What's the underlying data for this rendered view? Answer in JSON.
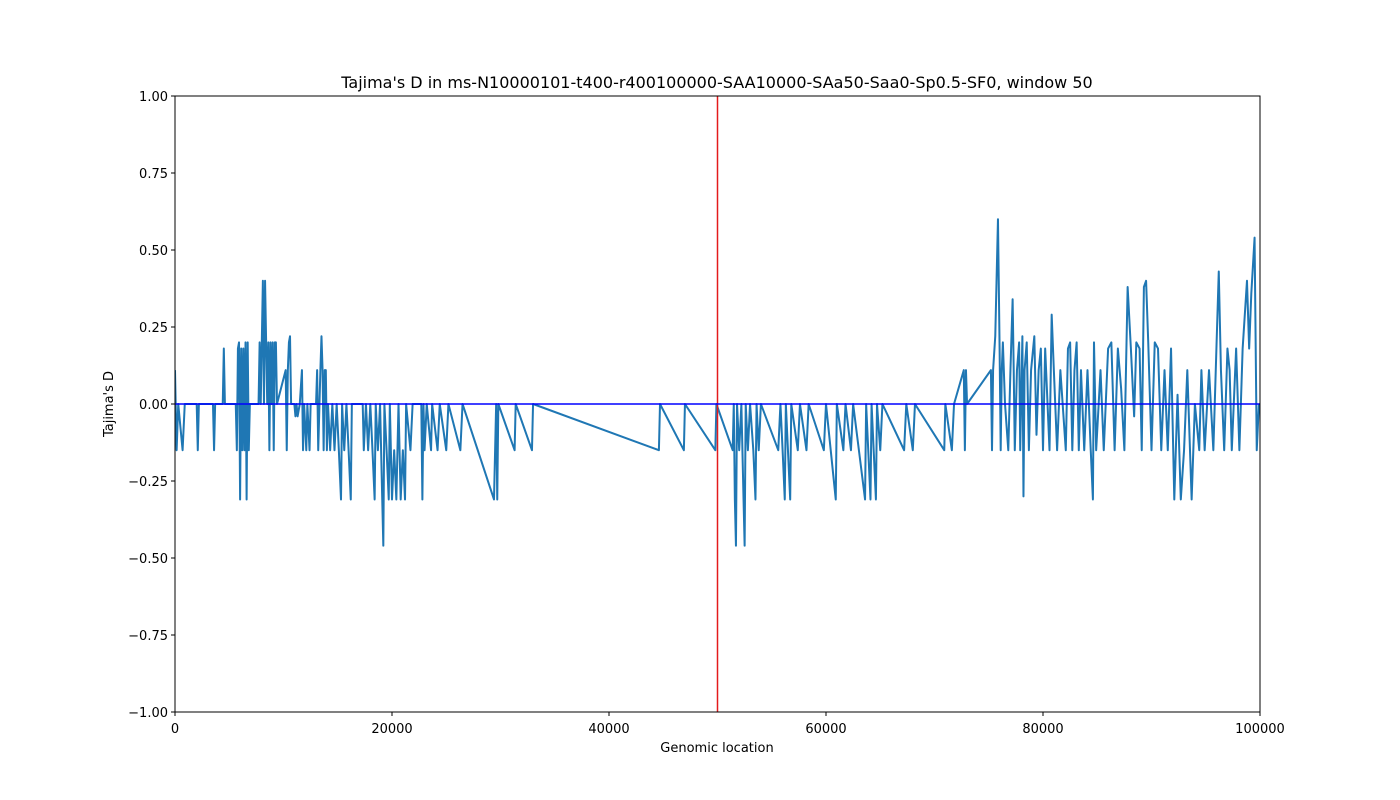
{
  "chart_data": {
    "type": "line",
    "title": "Tajima's D in ms-N10000101-t400-r400100000-SAA10000-SAa50-Saa0-Sp0.5-SF0, window 50",
    "xlabel": "Genomic location",
    "ylabel": "Tajima's D",
    "color": "#1f77b4",
    "xlim": [
      0,
      100000
    ],
    "ylim": [
      -1,
      1
    ],
    "xticks": [
      0,
      20000,
      40000,
      60000,
      80000,
      100000
    ],
    "yticks": [
      {
        "value": -1,
        "label": "−1.00"
      },
      {
        "value": -0.75,
        "label": "−0.75"
      },
      {
        "value": -0.5,
        "label": "−0.50"
      },
      {
        "value": -0.25,
        "label": "−0.25"
      },
      {
        "value": 0,
        "label": "0.00"
      },
      {
        "value": 0.25,
        "label": "0.25"
      },
      {
        "value": 0.5,
        "label": "0.50"
      },
      {
        "value": 0.75,
        "label": "0.75"
      },
      {
        "value": 1,
        "label": "1.00"
      }
    ],
    "grid": false,
    "reference_lines": [
      {
        "axis": "x",
        "value": 50000,
        "color": "#e41a1c"
      },
      {
        "axis": "y",
        "value": 0,
        "color": "#0000ff"
      }
    ],
    "x": [
      0,
      150,
      300,
      700,
      900,
      2000,
      2100,
      2200,
      3500,
      3600,
      3700,
      4400,
      4500,
      4600,
      5600,
      5700,
      5800,
      5900,
      6000,
      6100,
      6200,
      6300,
      6400,
      6500,
      6600,
      6700,
      6800,
      6900,
      7700,
      7800,
      7900,
      8000,
      8100,
      8200,
      8300,
      8400,
      8500,
      8600,
      8700,
      8800,
      8900,
      9000,
      9100,
      9200,
      9300,
      9400,
      10200,
      10300,
      10400,
      10500,
      10600,
      10700,
      11000,
      11100,
      11200,
      11300,
      11500,
      11700,
      11800,
      11900,
      12100,
      12200,
      12400,
      12500,
      13000,
      13100,
      13200,
      13400,
      13500,
      13600,
      13700,
      13800,
      13900,
      14000,
      14100,
      14300,
      14500,
      14700,
      14900,
      15100,
      15300,
      15400,
      15600,
      15800,
      16000,
      16200,
      16300,
      17300,
      17400,
      17600,
      17800,
      18000,
      18200,
      18400,
      18500,
      18700,
      18900,
      19100,
      19200,
      19300,
      19500,
      19700,
      19800,
      20000,
      20200,
      20400,
      20600,
      20800,
      21000,
      21200,
      21300,
      21700,
      21900,
      22700,
      22800,
      22900,
      23000,
      23200,
      23600,
      23700,
      24200,
      24400,
      25000,
      25200,
      26300,
      26500,
      29400,
      29600,
      29700,
      29800,
      31300,
      31400,
      32900,
      33000,
      44600,
      44700,
      46900,
      47000,
      49800,
      49900,
      51400,
      51500,
      51600,
      51700,
      51800,
      52000,
      52200,
      52400,
      52500,
      52600,
      52800,
      53000,
      53300,
      53500,
      53600,
      53800,
      54000,
      55600,
      55800,
      56000,
      56200,
      56300,
      56700,
      56800,
      57400,
      57600,
      58200,
      58400,
      59800,
      60000,
      60900,
      61000,
      61600,
      61800,
      62300,
      62500,
      63600,
      63700,
      64100,
      64200,
      64600,
      64700,
      65000,
      65200,
      67200,
      67400,
      68000,
      68200,
      70900,
      71000,
      71600,
      71800,
      72700,
      72800,
      72900,
      73000,
      75200,
      75300,
      75400,
      75600,
      75850,
      76000,
      76100,
      76200,
      76300,
      76500,
      76800,
      77000,
      77200,
      77300,
      77400,
      77600,
      77800,
      77900,
      78100,
      78200,
      78300,
      78500,
      78700,
      78900,
      79200,
      79400,
      79600,
      79800,
      80000,
      80200,
      80600,
      80800,
      81000,
      81300,
      81600,
      82100,
      82300,
      82500,
      82700,
      82900,
      83100,
      83300,
      83500,
      83800,
      84100,
      84400,
      84600,
      84700,
      84900,
      85300,
      85600,
      86000,
      86300,
      86600,
      86900,
      87200,
      87500,
      87800,
      88100,
      88400,
      88600,
      88900,
      89100,
      89300,
      89500,
      89700,
      90000,
      90300,
      90600,
      90900,
      91200,
      91500,
      91800,
      92100,
      92400,
      92700,
      93000,
      93300,
      93700,
      94000,
      94400,
      94600,
      94900,
      95300,
      95700,
      96000,
      96200,
      96400,
      96700,
      97000,
      97200,
      97400,
      97800,
      98100,
      98400,
      98800,
      99000,
      99200,
      99500,
      99700,
      99900
    ],
    "values": [
      0.11,
      -0.15,
      0,
      -0.15,
      0,
      0,
      -0.15,
      0,
      0,
      -0.15,
      0,
      0,
      0.18,
      0,
      0,
      -0.15,
      0.18,
      0.2,
      -0.31,
      0.18,
      -0.15,
      0.18,
      -0.15,
      0.2,
      -0.31,
      0.2,
      -0.15,
      0,
      0,
      0.2,
      0,
      0.2,
      0.4,
      0,
      0.4,
      0.2,
      0,
      0.2,
      -0.15,
      0.2,
      0,
      0.2,
      -0.15,
      0.2,
      0.2,
      0,
      0.11,
      -0.15,
      0.11,
      0.2,
      0.22,
      0,
      0,
      -0.04,
      0,
      -0.04,
      0,
      0.11,
      -0.15,
      0,
      -0.15,
      0,
      -0.15,
      0,
      0,
      0.11,
      -0.15,
      0.11,
      0.22,
      0.11,
      -0.15,
      0.11,
      0.11,
      -0.15,
      0,
      -0.15,
      0,
      -0.15,
      0,
      -0.15,
      -0.31,
      0,
      -0.15,
      0,
      -0.15,
      -0.31,
      0,
      0,
      -0.15,
      0,
      -0.15,
      0,
      -0.15,
      -0.31,
      0,
      -0.15,
      0,
      -0.31,
      -0.46,
      0,
      -0.15,
      -0.31,
      0,
      -0.31,
      -0.15,
      -0.31,
      0,
      -0.31,
      -0.15,
      -0.31,
      0,
      -0.15,
      0,
      0,
      -0.31,
      0,
      -0.15,
      0,
      -0.15,
      0,
      -0.15,
      0,
      -0.15,
      0,
      -0.15,
      0,
      -0.31,
      0,
      -0.31,
      0,
      -0.15,
      0,
      -0.15,
      0,
      -0.15,
      0,
      -0.15,
      0,
      -0.15,
      0,
      -0.15,
      0,
      -0.31,
      -0.46,
      0,
      -0.15,
      0,
      -0.31,
      -0.46,
      0,
      -0.15,
      0,
      -0.15,
      -0.31,
      0,
      -0.15,
      0,
      -0.15,
      0,
      -0.15,
      -0.31,
      0,
      -0.31,
      0,
      -0.15,
      0,
      -0.15,
      0,
      -0.15,
      0,
      -0.31,
      0,
      -0.15,
      0,
      -0.15,
      0,
      -0.31,
      0,
      -0.31,
      0,
      -0.31,
      0,
      -0.15,
      0,
      -0.15,
      0,
      -0.15,
      0,
      -0.15,
      0,
      -0.15,
      0,
      0.11,
      -0.15,
      0.11,
      0,
      0.11,
      -0.15,
      0.11,
      0.22,
      0.6,
      0.18,
      -0.15,
      0.11,
      0.2,
      0,
      -0.15,
      0.11,
      0.34,
      0.11,
      -0.15,
      0.11,
      0.2,
      -0.15,
      0.22,
      -0.3,
      0.11,
      0.2,
      -0.15,
      0.11,
      0.22,
      -0.1,
      0.11,
      0.18,
      -0.15,
      0.18,
      -0.15,
      0.29,
      0.11,
      -0.15,
      0.11,
      -0.15,
      0.18,
      0.2,
      -0.15,
      0.11,
      0.2,
      -0.15,
      0.11,
      -0.15,
      0.11,
      -0.15,
      -0.31,
      0.2,
      -0.15,
      0.11,
      -0.15,
      0.18,
      0.2,
      -0.15,
      0.18,
      0.05,
      -0.15,
      0.38,
      0.18,
      -0.04,
      0.2,
      0.18,
      -0.15,
      0.38,
      0.4,
      0.2,
      -0.15,
      0.2,
      0.18,
      -0.15,
      0.11,
      -0.15,
      0.18,
      -0.31,
      0.03,
      -0.31,
      -0.15,
      0.11,
      -0.31,
      0,
      -0.15,
      0.11,
      -0.15,
      0.11,
      -0.15,
      0.2,
      0.43,
      0.11,
      -0.15,
      0.18,
      0.11,
      -0.15,
      0.18,
      -0.15,
      0.18,
      0.4,
      0.18,
      0.36,
      0.54,
      -0.15,
      0
    ]
  }
}
